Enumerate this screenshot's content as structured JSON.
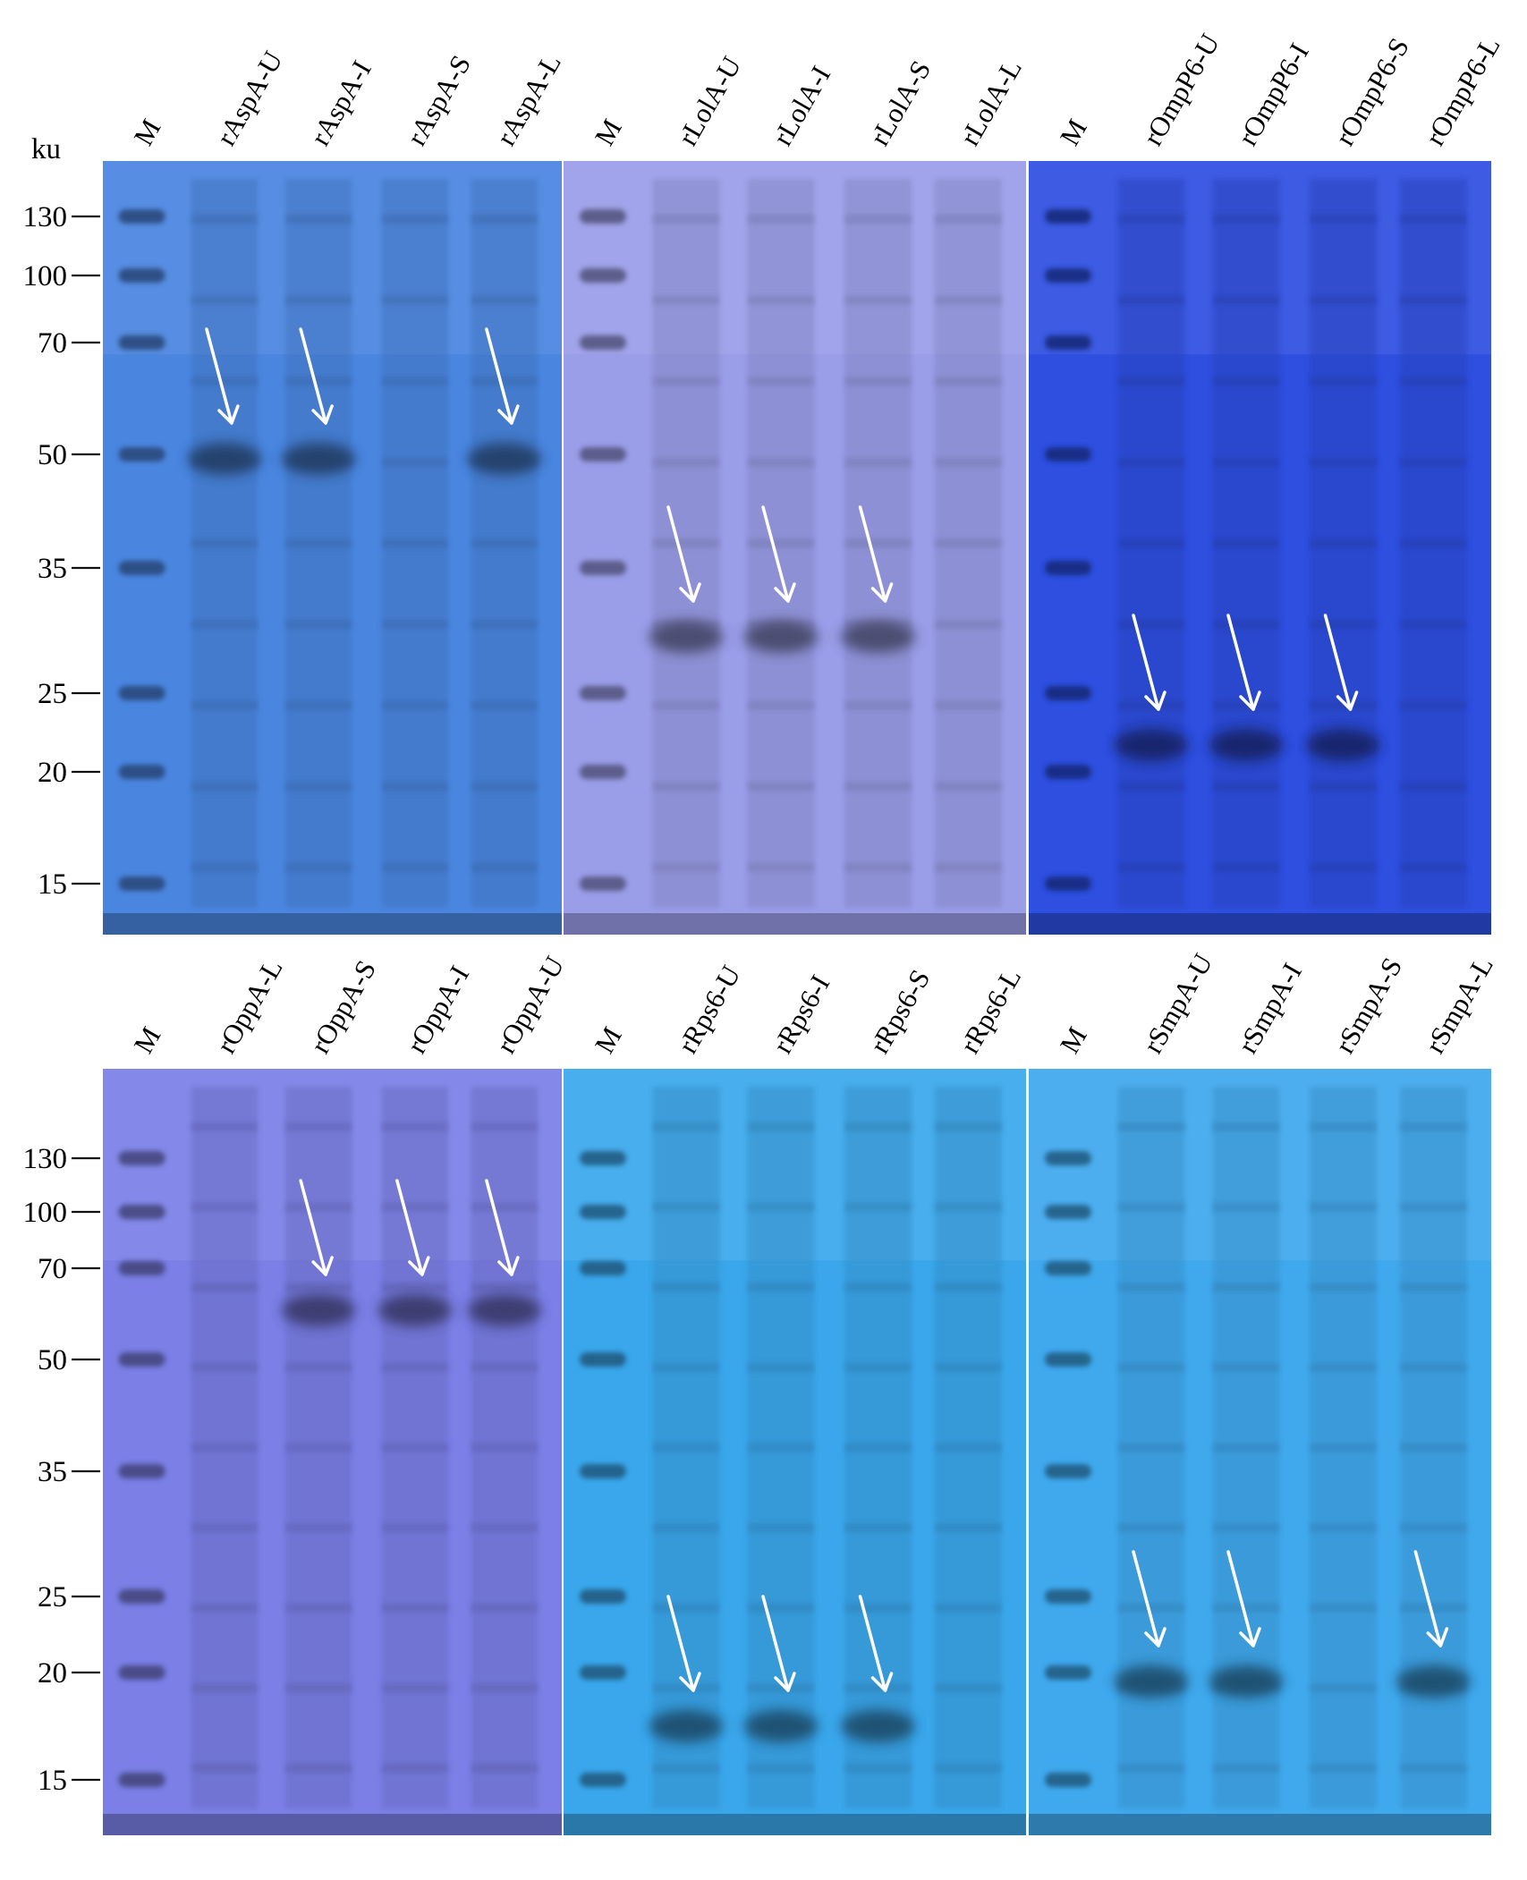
{
  "figure": {
    "unit_label": "ku",
    "marker_scale": [
      "130",
      "100",
      "70",
      "50",
      "35",
      "25",
      "20",
      "15"
    ],
    "rows": [
      {
        "panels": [
          {
            "lanes": [
              "M",
              "rAspA-U",
              "rAspA-I",
              "rAspA-S",
              "rAspA-L"
            ],
            "stain": "#4a86e0",
            "arrows_on": [
              1,
              2,
              4
            ]
          },
          {
            "lanes": [
              "M",
              "rLolA-U",
              "rLolA-I",
              "rLolA-S",
              "rLolA-L"
            ],
            "stain": "#9a9de8",
            "arrows_on": [
              1,
              2,
              3
            ]
          },
          {
            "lanes": [
              "M",
              "rOmpP6-U",
              "rOmpP6-I",
              "rOmpP6-S",
              "rOmpP6-L"
            ],
            "stain": "#2e4fe0",
            "arrows_on": [
              1,
              2,
              3
            ]
          }
        ]
      },
      {
        "panels": [
          {
            "lanes": [
              "M",
              "rOppA-L",
              "rOppA-S",
              "rOppA-I",
              "rOppA-U"
            ],
            "stain": "#7b7fe6",
            "arrows_on": [
              2,
              3,
              4
            ]
          },
          {
            "lanes": [
              "M",
              "rRps6-U",
              "rRps6-I",
              "rRps6-S",
              "rRps6-L"
            ],
            "stain": "#3aa7ec",
            "arrows_on": [
              1,
              2,
              3
            ]
          },
          {
            "lanes": [
              "M",
              "rSmpA-U",
              "rSmpA-I",
              "rSmpA-S",
              "rSmpA-L"
            ],
            "stain": "#40a9ee",
            "arrows_on": [
              1,
              2,
              4
            ]
          }
        ]
      }
    ]
  }
}
